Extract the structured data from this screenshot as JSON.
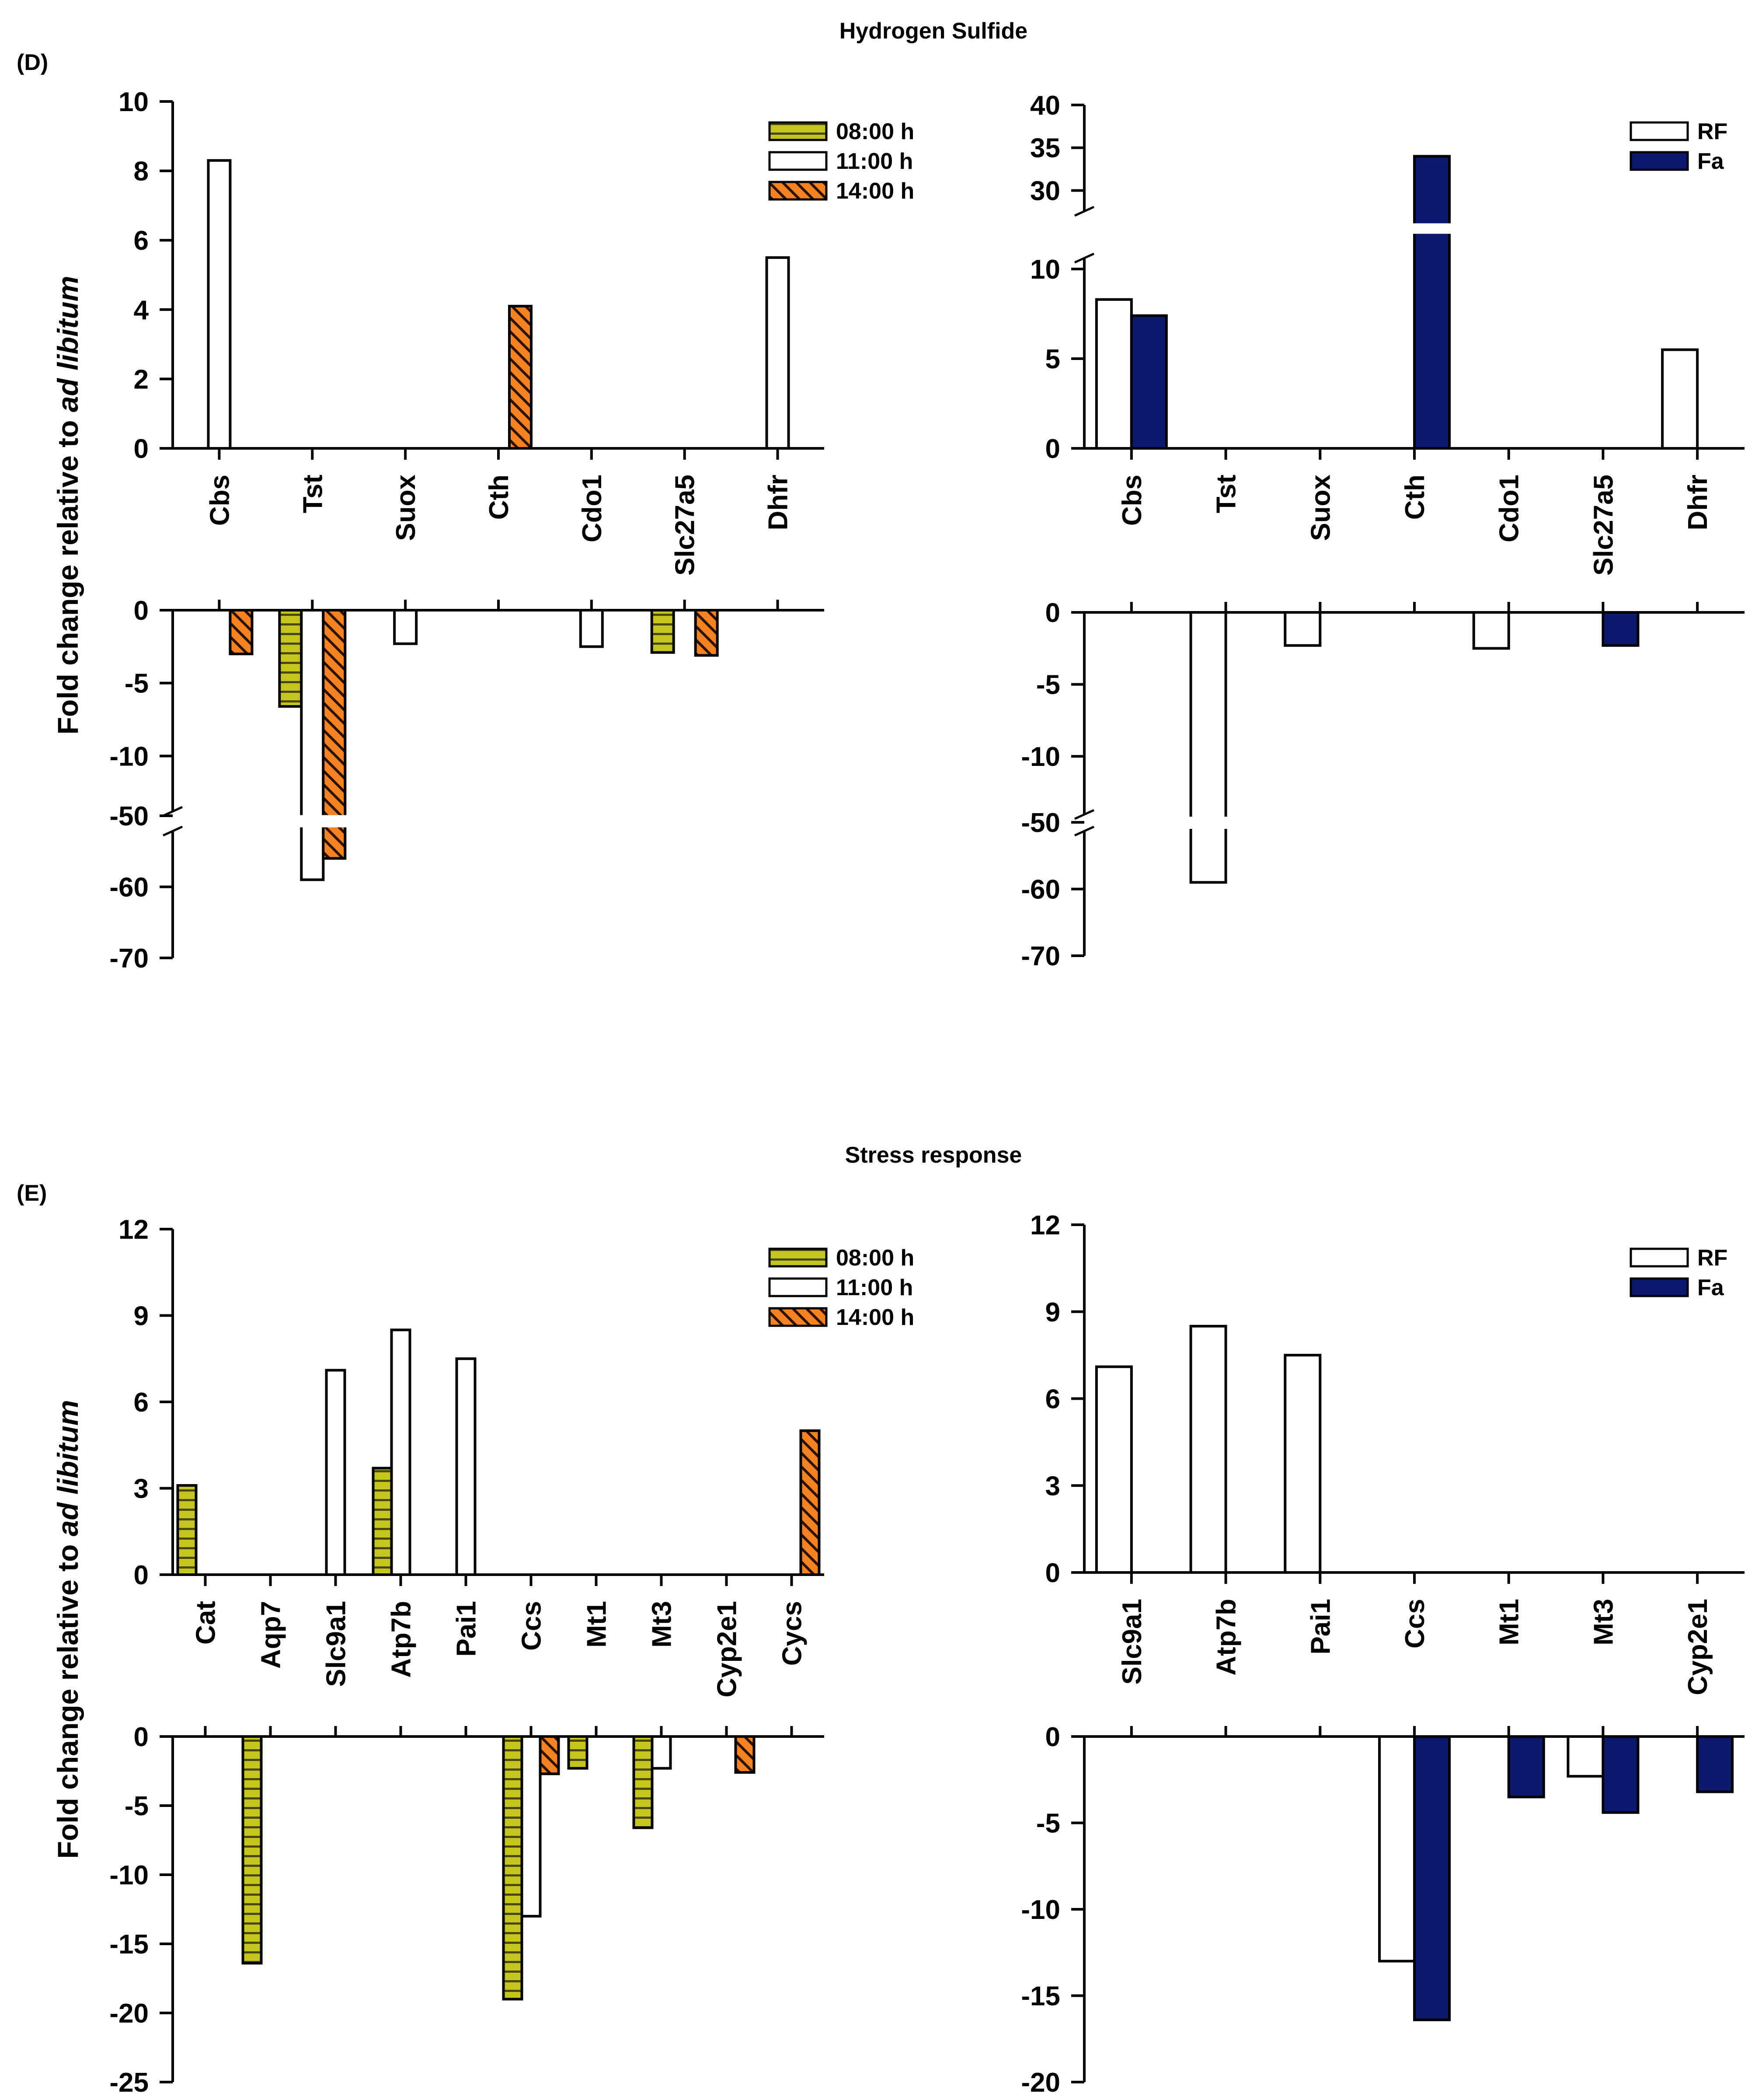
{
  "figure": {
    "colors": {
      "c0800": "#c4c61e",
      "c1100": "#ffffff",
      "c1400": "#f58220",
      "RF": "#ffffff",
      "Fa": "#0c1a6e"
    },
    "sections": [
      {
        "id": "D",
        "title": "Hydrogen Sulfide",
        "panel_label": "(D)"
      },
      {
        "id": "E",
        "title": "Stress response",
        "panel_label": "(E)"
      }
    ]
  },
  "chart_data": [
    {
      "id": "D-left",
      "type": "bar",
      "ylabel": "Fold change relative to ad libitum",
      "ylabel_plain": "Fold change relative to ",
      "ylabel_italic": "ad libitum",
      "categories": [
        "Cbs",
        "Tst",
        "Suox",
        "Cth",
        "Cdo1",
        "Slc27a5",
        "Dhfr"
      ],
      "legend": [
        "08:00 h",
        "11:00 h",
        "14:00 h"
      ],
      "upper": {
        "ylim": [
          0,
          10
        ],
        "ticks": [
          0,
          2,
          4,
          6,
          8,
          10
        ]
      },
      "lower": {
        "ylim": [
          -12,
          0
        ],
        "ticks": [
          0,
          -5,
          -10
        ],
        "break_ticks": [
          -50,
          -60,
          -70
        ],
        "break_range": [
          -70,
          -50
        ]
      },
      "series": [
        {
          "name": "08:00 h",
          "values": [
            null,
            -6.6,
            null,
            null,
            null,
            -2.9,
            null
          ]
        },
        {
          "name": "11:00 h",
          "values": [
            8.3,
            -59,
            -2.3,
            null,
            -2.5,
            null,
            5.5
          ]
        },
        {
          "name": "14:00 h",
          "values": [
            -3,
            -56,
            null,
            4.1,
            null,
            -3.1,
            null
          ]
        }
      ]
    },
    {
      "id": "D-right",
      "type": "bar",
      "categories": [
        "Cbs",
        "Tst",
        "Suox",
        "Cth",
        "Cdo1",
        "Slc27a5",
        "Dhfr"
      ],
      "legend": [
        "RF",
        "Fa"
      ],
      "upper": {
        "ylim": [
          0,
          10
        ],
        "ticks": [
          0,
          5,
          10
        ],
        "break_ticks": [
          30,
          35,
          40
        ],
        "break_range": [
          29,
          40
        ]
      },
      "lower": {
        "ylim": [
          -12,
          0
        ],
        "ticks": [
          0,
          -5,
          -10
        ],
        "break_ticks": [
          -50,
          -60,
          -70
        ],
        "break_range": [
          -70,
          -50
        ]
      },
      "series": [
        {
          "name": "RF",
          "values": [
            8.3,
            -59,
            -2.3,
            null,
            -2.5,
            null,
            5.5
          ]
        },
        {
          "name": "Fa",
          "values": [
            7.4,
            null,
            null,
            34,
            null,
            -2.3,
            null
          ]
        }
      ]
    },
    {
      "id": "E-left",
      "type": "bar",
      "ylabel": "Fold change relative to ad libitum",
      "ylabel_plain": "Fold change relative to ",
      "ylabel_italic": "ad libitum",
      "categories": [
        "Cat",
        "Aqp7",
        "Slc9a1",
        "Atp7b",
        "Pai1",
        "Ccs",
        "Mt1",
        "Mt3",
        "Cyp2e1",
        "Cycs"
      ],
      "legend": [
        "08:00 h",
        "11:00 h",
        "14:00 h"
      ],
      "upper": {
        "ylim": [
          0,
          12
        ],
        "ticks": [
          0,
          3,
          6,
          9,
          12
        ]
      },
      "lower": {
        "ylim": [
          -25,
          0
        ],
        "ticks": [
          0,
          -5,
          -10,
          -15,
          -20,
          -25
        ]
      },
      "series": [
        {
          "name": "08:00 h",
          "values": [
            3.1,
            -16.4,
            null,
            3.7,
            null,
            -19,
            -2.3,
            -6.6,
            null,
            null
          ]
        },
        {
          "name": "11:00 h",
          "values": [
            null,
            null,
            7.1,
            8.5,
            7.5,
            -13,
            null,
            -2.3,
            null,
            null
          ]
        },
        {
          "name": "14:00 h",
          "values": [
            null,
            null,
            null,
            null,
            null,
            -2.7,
            null,
            null,
            -2.6,
            5
          ]
        }
      ]
    },
    {
      "id": "E-right",
      "type": "bar",
      "categories": [
        "Slc9a1",
        "Atp7b",
        "Pai1",
        "Ccs",
        "Mt1",
        "Mt3",
        "Cyp2e1"
      ],
      "legend": [
        "RF",
        "Fa"
      ],
      "upper": {
        "ylim": [
          0,
          12
        ],
        "ticks": [
          0,
          3,
          6,
          9,
          12
        ]
      },
      "lower": {
        "ylim": [
          -20,
          0
        ],
        "ticks": [
          0,
          -5,
          -10,
          -15,
          -20
        ]
      },
      "series": [
        {
          "name": "RF",
          "values": [
            7.1,
            8.5,
            7.5,
            -13,
            null,
            -2.3,
            null
          ]
        },
        {
          "name": "Fa",
          "values": [
            null,
            null,
            null,
            -16.4,
            -3.5,
            -4.4,
            -3.2
          ]
        }
      ]
    }
  ]
}
